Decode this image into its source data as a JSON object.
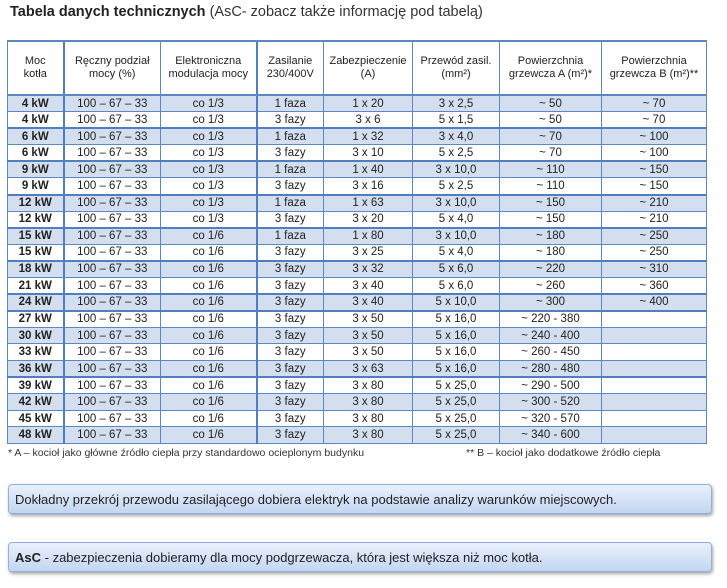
{
  "title": {
    "bold": "Tabela danych technicznych",
    "rest": " (AsC- zobacz także informację pod tabelą)"
  },
  "table": {
    "headers": [
      [
        "Moc",
        "kotła"
      ],
      [
        "Ręczny podział",
        "mocy (%)"
      ],
      [
        "Elektroniczna",
        "modulacja mocy"
      ],
      [
        "Zasilanie",
        "230/400V"
      ],
      [
        "Zabezpieczenie",
        "(A)"
      ],
      [
        "Przewód zasil.",
        "(mm²)"
      ],
      [
        "Powierzchnia",
        "grzewcza A (m²)*"
      ],
      [
        "Powierzchnia",
        "grzewcza B (m²)**"
      ]
    ],
    "rows": [
      [
        "4 kW",
        "100 – 67 – 33",
        "co 1/3",
        "1 faza",
        "1 x 20",
        "3 x 2,5",
        "~ 50",
        "~ 70"
      ],
      [
        "4 kW",
        "100 – 67 – 33",
        "co 1/3",
        "3 fazy",
        "3 x 6",
        "5 x 1,5",
        "~ 50",
        "~ 70"
      ],
      [
        "6 kW",
        "100 – 67 – 33",
        "co 1/3",
        "1 faza",
        "1 x 32",
        "3 x 4,0",
        "~ 70",
        "~ 100"
      ],
      [
        "6 kW",
        "100 – 67 – 33",
        "co 1/3",
        "3 fazy",
        "3 x 10",
        "5 x 2,5",
        "~ 70",
        "~ 100"
      ],
      [
        "9 kW",
        "100 – 67 – 33",
        "co 1/3",
        "1 faza",
        "1 x 40",
        "3 x 10,0",
        "~ 110",
        "~ 150"
      ],
      [
        "9 kW",
        "100 – 67 – 33",
        "co 1/3",
        "3 fazy",
        "3 x 16",
        "5 x 2,5",
        "~ 110",
        "~ 150"
      ],
      [
        "12 kW",
        "100 – 67 – 33",
        "co 1/3",
        "1 faza",
        "1 x 63",
        "3 x 10,0",
        "~ 150",
        "~ 210"
      ],
      [
        "12 kW",
        "100 – 67 – 33",
        "co 1/3",
        "3 fazy",
        "3 x 20",
        "5 x 4,0",
        "~ 150",
        "~ 210"
      ],
      [
        "15 kW",
        "100 – 67 – 33",
        "co 1/6",
        "1 faza",
        "1 x 80",
        "3 x 10,0",
        "~ 180",
        "~ 250"
      ],
      [
        "15 kW",
        "100 – 67 – 33",
        "co 1/6",
        "3 fazy",
        "3 x 25",
        "5 x 4,0",
        "~ 180",
        "~ 250"
      ],
      [
        "18 kW",
        "100 – 67 – 33",
        "co 1/6",
        "3 fazy",
        "3 x 32",
        "5 x 6,0",
        "~ 220",
        "~ 310"
      ],
      [
        "21 kW",
        "100 – 67 – 33",
        "co 1/6",
        "3 fazy",
        "3 x 40",
        "5 x 6,0",
        "~ 260",
        "~ 360"
      ],
      [
        "24 kW",
        "100 – 67 – 33",
        "co 1/6",
        "3 fazy",
        "3 x 40",
        "5 x 10,0",
        "~ 300",
        "~ 400"
      ],
      [
        "27 kW",
        "100 – 67 – 33",
        "co 1/6",
        "3 fazy",
        "3 x 50",
        "5 x 16,0",
        "~ 220 - 380",
        ""
      ],
      [
        "30 kW",
        "100 – 67 – 33",
        "co 1/6",
        "3 fazy",
        "3 x 50",
        "5 x 16,0",
        "~ 240 - 400",
        ""
      ],
      [
        "33 kW",
        "100 – 67 – 33",
        "co 1/6",
        "3 fazy",
        "3 x 50",
        "5 x 16,0",
        "~ 260 - 450",
        ""
      ],
      [
        "36 kW",
        "100 – 67 – 33",
        "co 1/6",
        "3 fazy",
        "3 x 63",
        "5 x 16,0",
        "~ 280 - 480",
        ""
      ],
      [
        "39 kW",
        "100 – 67 – 33",
        "co 1/6",
        "3 fazy",
        "3 x 80",
        "5 x 25,0",
        "~ 290 - 500",
        ""
      ],
      [
        "42 kW",
        "100 – 67 – 33",
        "co 1/6",
        "3 fazy",
        "3 x 80",
        "5 x 25,0",
        "~ 300 - 520",
        ""
      ],
      [
        "45 kW",
        "100 – 67 – 33",
        "co 1/6",
        "3 fazy",
        "3 x 80",
        "5 x 25,0",
        "~ 320 - 570",
        ""
      ],
      [
        "48 kW",
        "100 – 67 – 33",
        "co 1/6",
        "3 fazy",
        "3 x 80",
        "5 x 25,0",
        "~ 340 - 600",
        ""
      ]
    ]
  },
  "notes": {
    "a": "* A – kocioł jako główne źródło ciepła przy standardowo ocieplonym budynku",
    "b": "** B – kocioł jako dodatkowe źródło ciepła"
  },
  "boxes": {
    "box1": "Dokładny przekrój przewodu zasilającego dobiera elektryk na podstawie analizy warunków miejscowych.",
    "box2_bold": "AsC",
    "box2_rest": " - zabezpieczenia dobieramy dla mocy podgrzewacza, która jest większa niż moc kotła."
  },
  "colors": {
    "border": "#5b87c3",
    "row_shade": "#d3dfef",
    "box_gradient_top": "#e9f0fb",
    "box_gradient_bottom": "#c4d6f2"
  }
}
